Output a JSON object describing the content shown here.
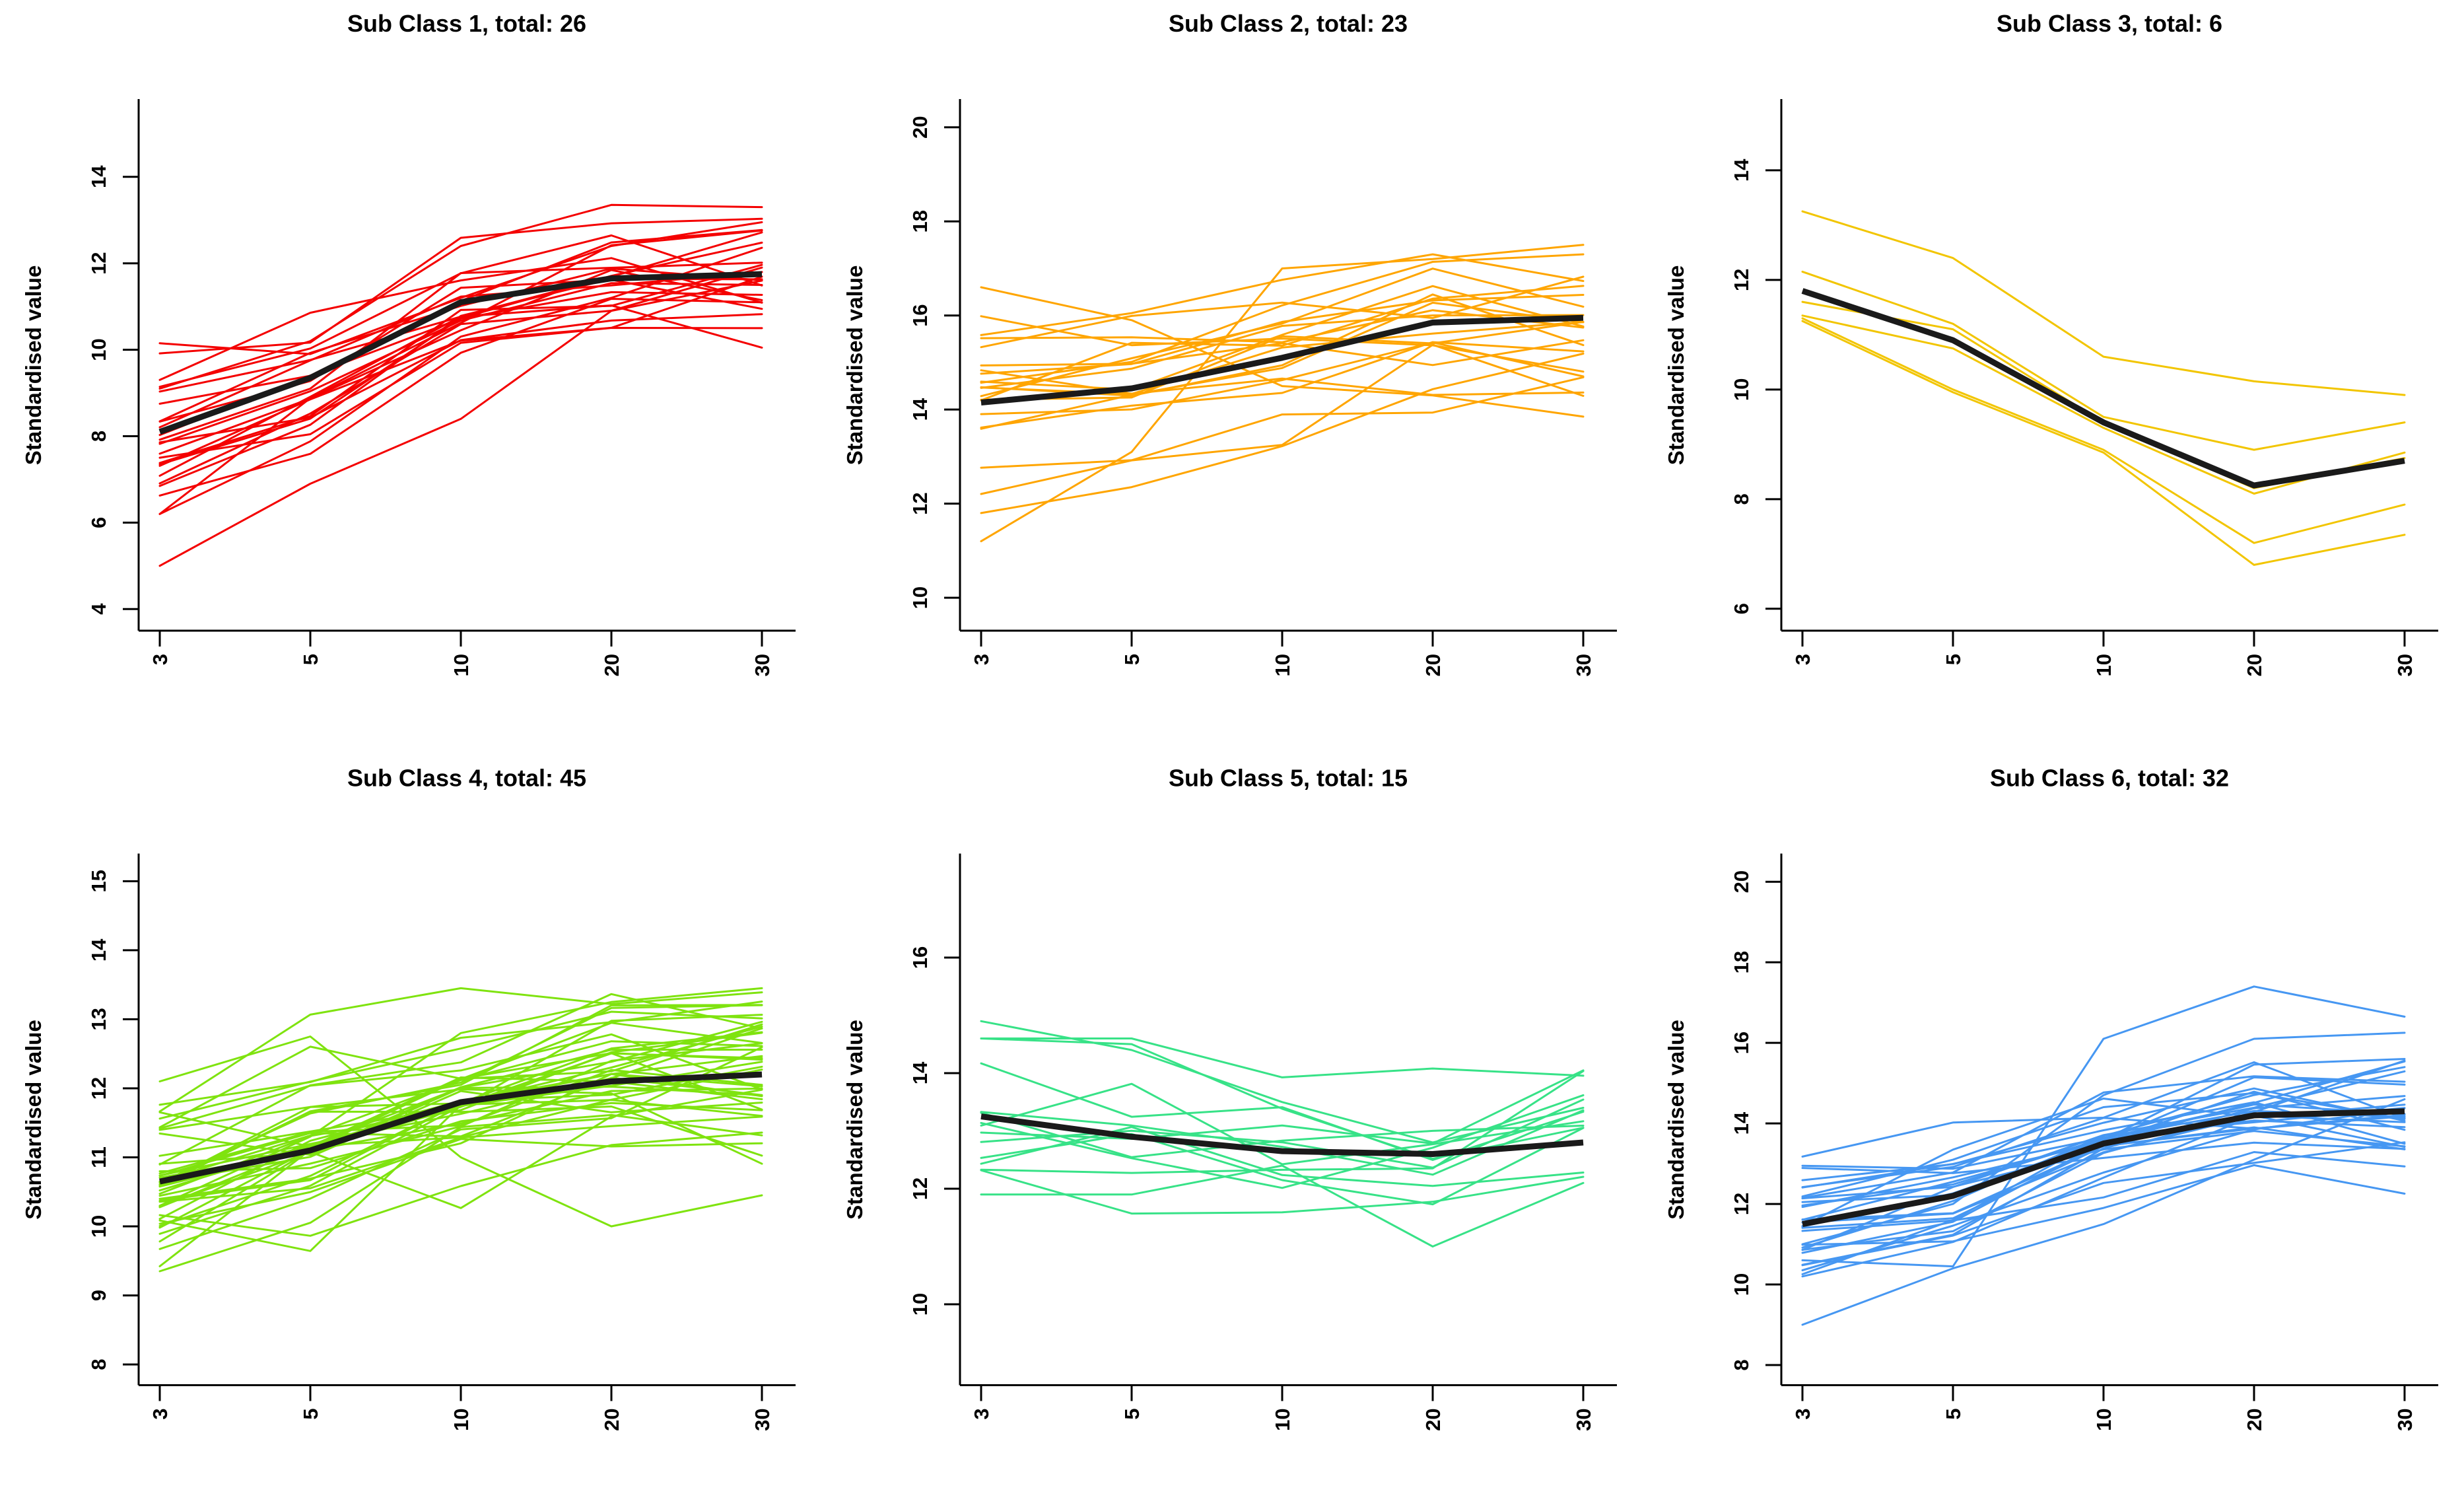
{
  "figure": {
    "background": "#FFFFFF",
    "axis_color": "#000000",
    "mean_line_color": "#1A1A1A",
    "ylabel": "Standardised value",
    "x_tick_labels": [
      "3",
      "5",
      "10",
      "20",
      "30"
    ]
  },
  "chart_data": [
    {
      "type": "line",
      "title": "Sub Class 1, total: 26",
      "subclass": "Sub Class 1",
      "total": 26,
      "line_color": "#F40000",
      "x": [
        3,
        5,
        10,
        20,
        30
      ],
      "yticks": [
        4,
        6,
        8,
        10,
        12,
        14
      ],
      "ylim": [
        3.5,
        15.8
      ],
      "mean": [
        8.1,
        9.35,
        11.1,
        11.65,
        11.75
      ],
      "outlier_members": [
        [
          5.0,
          6.9,
          8.4,
          10.9,
          11.6
        ],
        [
          9.1,
          10.2,
          12.4,
          13.35,
          13.3
        ],
        [
          10.15,
          9.9,
          11.2,
          12.4,
          12.95
        ]
      ],
      "member_envelope": {
        "count": 26,
        "start_sd": 1.15,
        "end_sd": 0.55,
        "jitter": 0.3,
        "min": 6.2,
        "max": 13.4,
        "seed": 11
      }
    },
    {
      "type": "line",
      "title": "Sub Class 2, total: 23",
      "subclass": "Sub Class 2",
      "total": 23,
      "line_color": "#FFA500",
      "x": [
        3,
        5,
        10,
        20,
        30
      ],
      "yticks": [
        10,
        12,
        14,
        16,
        18,
        20
      ],
      "ylim": [
        9.3,
        20.6
      ],
      "mean": [
        14.15,
        14.45,
        15.1,
        15.85,
        15.95
      ],
      "outlier_members": [
        [
          16.6,
          15.9,
          14.5,
          14.3,
          13.85
        ],
        [
          11.2,
          13.1,
          17.0,
          17.2,
          17.5
        ]
      ],
      "member_envelope": {
        "count": 23,
        "start_sd": 1.0,
        "end_sd": 0.85,
        "jitter": 0.32,
        "min": 11.8,
        "max": 17.3,
        "seed": 22
      }
    },
    {
      "type": "line",
      "title": "Sub Class 3, total: 6",
      "subclass": "Sub Class 3",
      "total": 6,
      "line_color": "#F2C500",
      "x": [
        3,
        5,
        10,
        20,
        30
      ],
      "yticks": [
        6,
        8,
        10,
        12,
        14
      ],
      "ylim": [
        5.6,
        15.3
      ],
      "mean": [
        11.8,
        10.9,
        9.4,
        8.25,
        8.7
      ],
      "members": [
        [
          13.25,
          12.4,
          10.6,
          10.15,
          9.9
        ],
        [
          12.15,
          11.2,
          9.5,
          8.9,
          9.4
        ],
        [
          11.6,
          11.1,
          9.4,
          8.2,
          8.75
        ],
        [
          11.35,
          10.75,
          9.3,
          8.1,
          8.85
        ],
        [
          11.3,
          10.0,
          8.9,
          7.2,
          7.9
        ],
        [
          11.25,
          9.95,
          8.85,
          6.8,
          7.35
        ]
      ]
    },
    {
      "type": "line",
      "title": "Sub Class 4, total: 45",
      "subclass": "Sub Class 4",
      "total": 45,
      "line_color": "#7FE30F",
      "x": [
        3,
        5,
        10,
        20,
        30
      ],
      "yticks": [
        8,
        9,
        10,
        11,
        12,
        13,
        14,
        15
      ],
      "ylim": [
        7.7,
        15.4
      ],
      "mean": [
        10.65,
        11.1,
        11.8,
        12.1,
        12.2
      ],
      "outlier_members": [
        [
          12.1,
          12.75,
          11.0,
          10.0,
          10.45
        ],
        [
          10.3,
          11.3,
          12.8,
          13.25,
          13.45
        ]
      ],
      "member_envelope": {
        "count": 45,
        "start_sd": 0.66,
        "end_sd": 0.6,
        "jitter": 0.3,
        "min": 9.35,
        "max": 13.45,
        "seed": 44
      }
    },
    {
      "type": "line",
      "title": "Sub Class 5, total: 15",
      "subclass": "Sub Class 5",
      "total": 15,
      "line_color": "#37E287",
      "x": [
        3,
        5,
        10,
        20,
        30
      ],
      "yticks": [
        10,
        12,
        14,
        16
      ],
      "ylim": [
        8.6,
        17.8
      ],
      "mean": [
        13.25,
        12.9,
        12.65,
        12.6,
        12.8
      ],
      "outlier_members": [
        [
          14.9,
          14.4,
          13.5,
          12.8,
          13.4
        ],
        [
          11.9,
          11.9,
          12.4,
          11.0,
          12.1
        ]
      ],
      "member_envelope": {
        "count": 15,
        "start_sd": 0.85,
        "end_sd": 0.55,
        "jitter": 0.38,
        "min": 11.4,
        "max": 14.6,
        "seed": 55
      }
    },
    {
      "type": "line",
      "title": "Sub Class 6, total: 32",
      "subclass": "Sub Class 6",
      "total": 32,
      "line_color": "#4697F2",
      "x": [
        3,
        5,
        10,
        20,
        30
      ],
      "yticks": [
        8,
        10,
        12,
        14,
        16,
        18,
        20
      ],
      "ylim": [
        7.5,
        20.7
      ],
      "mean": [
        11.5,
        12.2,
        13.5,
        14.2,
        14.3
      ],
      "outlier_members": [
        [
          9.0,
          10.4,
          11.5,
          13.1,
          14.6
        ],
        [
          10.6,
          10.45,
          16.1,
          17.4,
          16.65
        ],
        [
          11.0,
          12.0,
          14.7,
          16.1,
          16.25
        ]
      ],
      "member_envelope": {
        "count": 32,
        "start_sd": 0.75,
        "end_sd": 0.6,
        "jitter": 0.3,
        "min": 10.2,
        "max": 15.6,
        "seed": 66
      }
    }
  ]
}
